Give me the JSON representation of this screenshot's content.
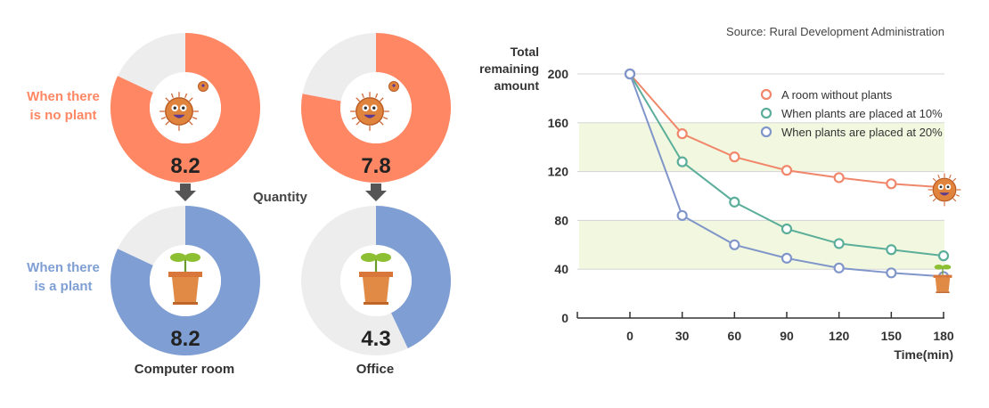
{
  "source": "Source: Rural Development Administration",
  "row_labels": {
    "no_plant": [
      "When there",
      "is no plant"
    ],
    "plant": [
      "When there",
      "is a plant"
    ]
  },
  "quantity_label": "Quantity",
  "places": [
    "Computer room",
    "Office"
  ],
  "colors": {
    "no_plant": "#FF8763",
    "plant": "#7F9FD4",
    "ring_bg": "#EDEDED",
    "series_none": "#F0876B",
    "series_10": "#5BAE9A",
    "series_20": "#8095C9",
    "band": "#F2F8DF"
  },
  "chart_data": [
    {
      "type": "pie",
      "title": "Computer room",
      "series": [
        {
          "name": "When there is no plant",
          "value": 8.2,
          "max": 10
        },
        {
          "name": "When there is a plant",
          "value": 8.2,
          "max": 10
        }
      ]
    },
    {
      "type": "pie",
      "title": "Office",
      "series": [
        {
          "name": "When there is no plant",
          "value": 7.8,
          "max": 10
        },
        {
          "name": "When there is a plant",
          "value": 4.3,
          "max": 10
        }
      ]
    },
    {
      "type": "line",
      "x": [
        0,
        30,
        60,
        90,
        120,
        150,
        180
      ],
      "xticks": [
        "0",
        "30",
        "60",
        "90",
        "120",
        "150",
        "180"
      ],
      "xlabel": "Time(min)",
      "ylabel": [
        "Total",
        "remaining",
        "amount"
      ],
      "yticks": [
        "0",
        "40",
        "80",
        "120",
        "160",
        "200"
      ],
      "ylim": [
        0,
        200
      ],
      "shaded_bands": [
        [
          40,
          80
        ],
        [
          120,
          160
        ]
      ],
      "legend_position": "top-right",
      "series": [
        {
          "name": "A room without plants",
          "values": [
            200,
            151,
            132,
            121,
            115,
            110,
            107
          ]
        },
        {
          "name": "When plants are placed at 10%",
          "values": [
            200,
            128,
            95,
            73,
            61,
            56,
            51
          ]
        },
        {
          "name": "When plants are placed at 20%",
          "values": [
            200,
            84,
            60,
            49,
            41,
            37,
            34
          ]
        }
      ]
    }
  ]
}
